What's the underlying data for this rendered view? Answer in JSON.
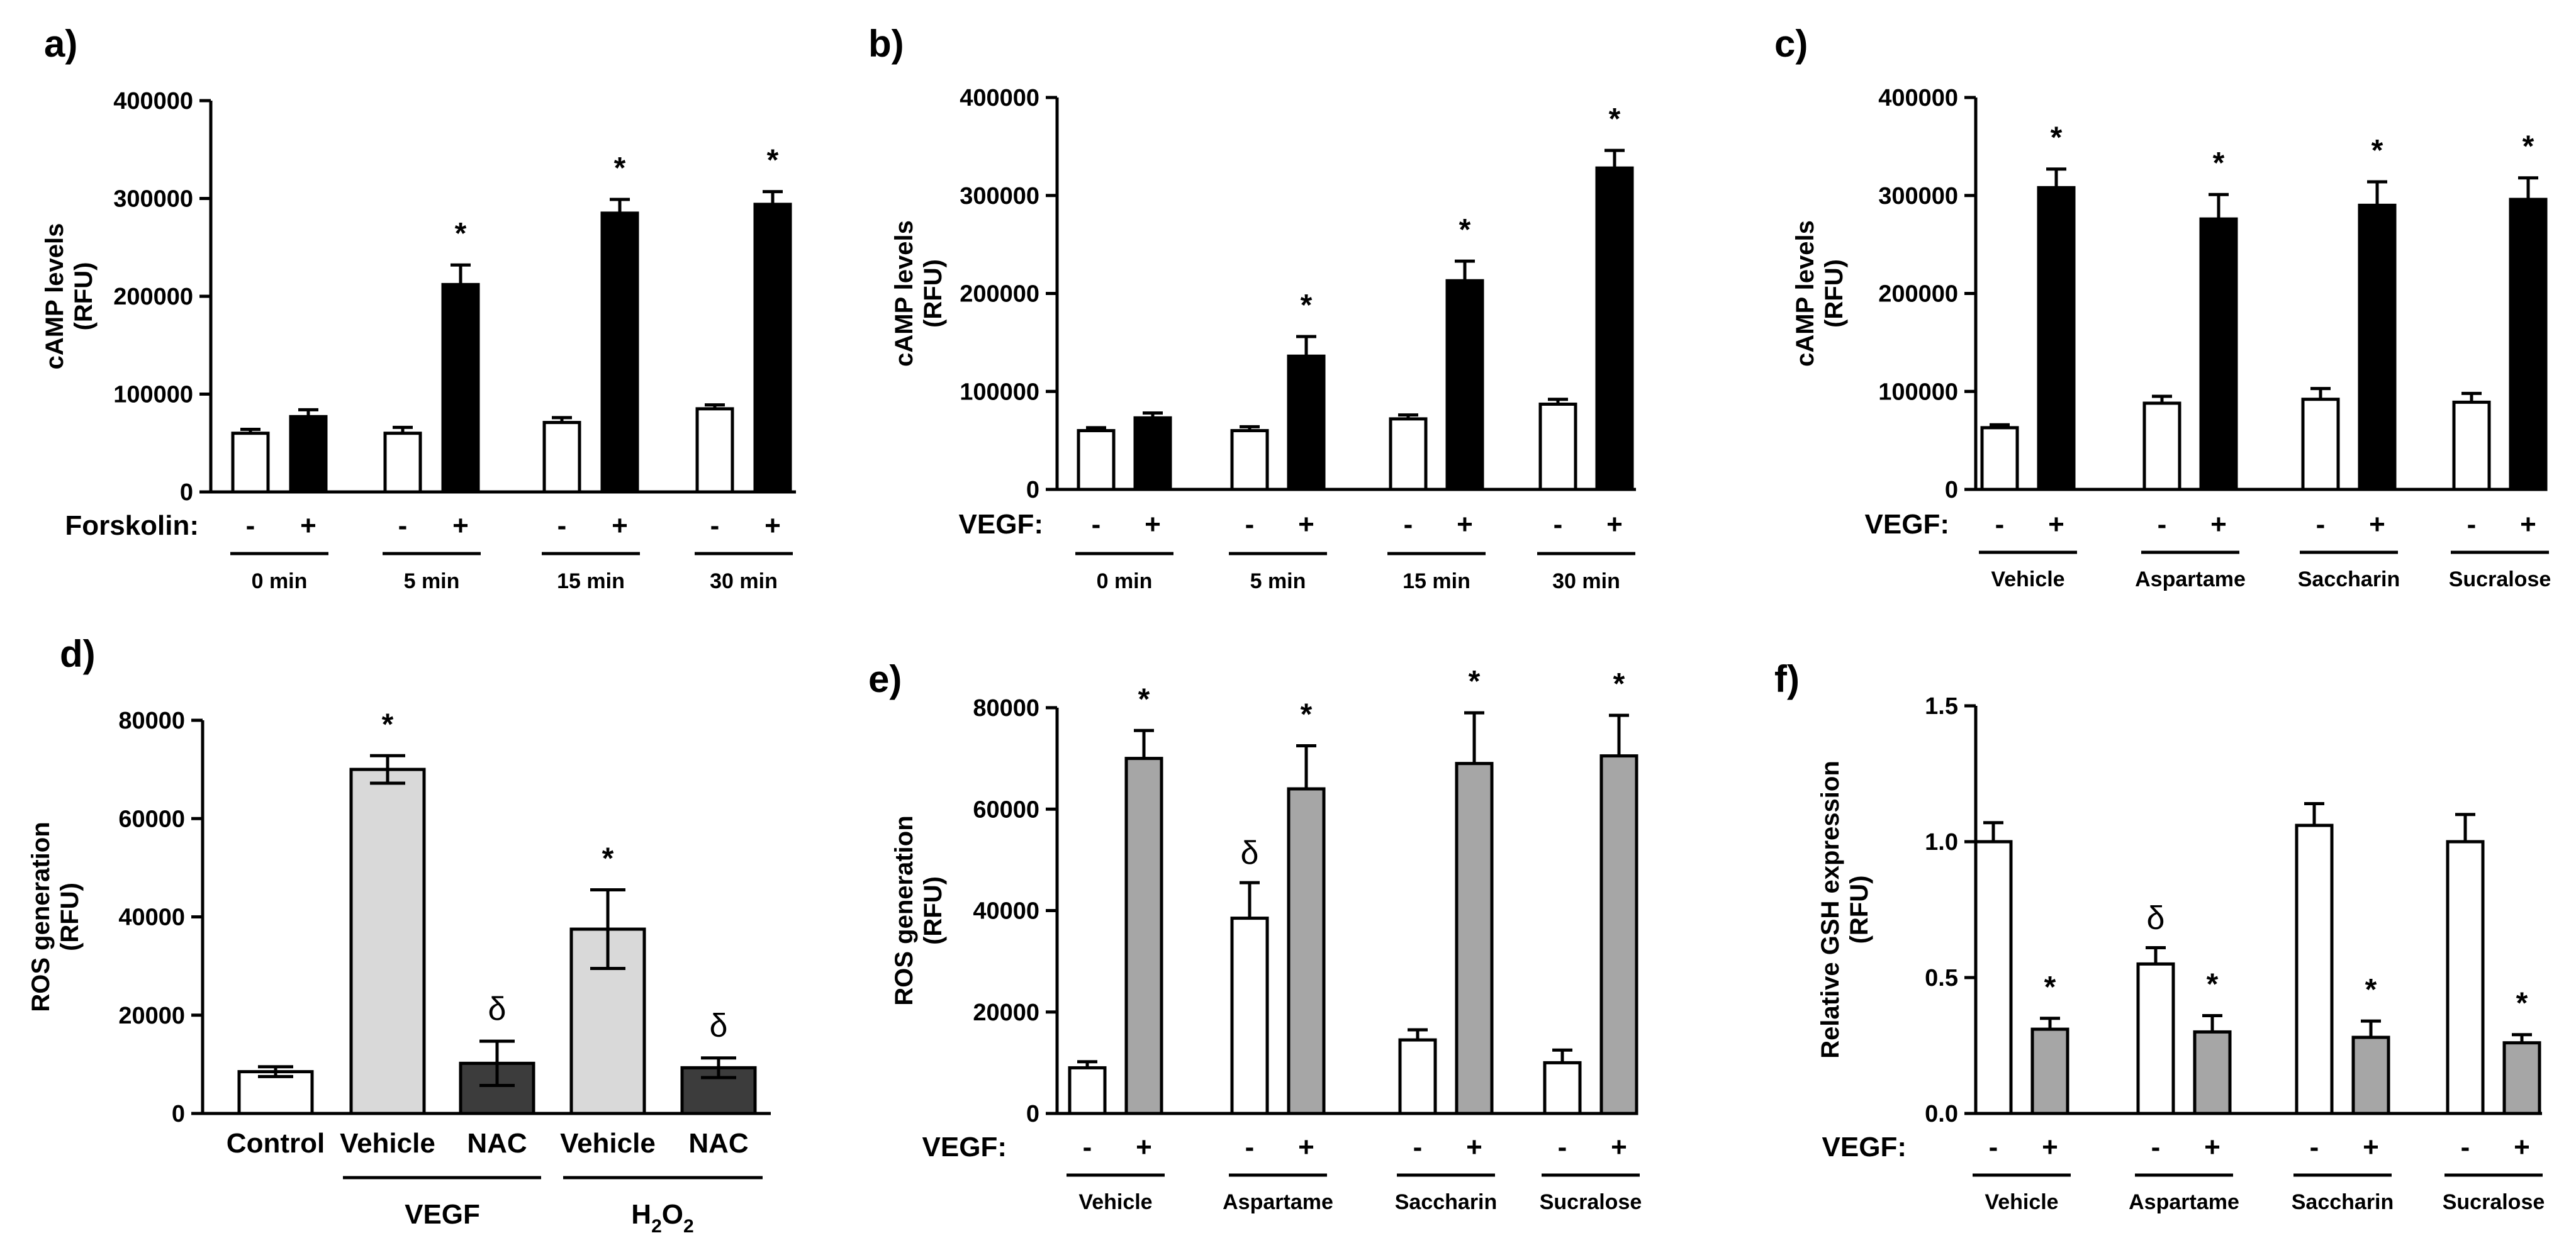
{
  "chart_data": [
    {
      "id": "a",
      "panel_label": "a)",
      "type": "bar",
      "ylabel": [
        "cAMP levels",
        "(RFU)"
      ],
      "ylim": [
        0,
        400000
      ],
      "yticks": [
        "0",
        "100000",
        "200000",
        "300000",
        "400000"
      ],
      "yticks_values": [
        0,
        100000,
        200000,
        300000,
        400000
      ],
      "treatment_label": "Forskolin:",
      "groups": [
        "0 min",
        "5 min",
        "15 min",
        "30 min"
      ],
      "signs": [
        "-",
        "+"
      ],
      "series": [
        {
          "name": "-",
          "fill": "#ffffff",
          "values": [
            60000,
            60000,
            71000,
            85000
          ],
          "errors": [
            4000,
            6000,
            5000,
            4000
          ],
          "marks": [
            "",
            "",
            "",
            ""
          ]
        },
        {
          "name": "+",
          "fill": "#000000",
          "values": [
            77000,
            212000,
            285000,
            294000
          ],
          "errors": [
            7000,
            20000,
            14000,
            13000
          ],
          "marks": [
            "",
            "*",
            "*",
            "*"
          ]
        }
      ]
    },
    {
      "id": "b",
      "panel_label": "b)",
      "type": "bar",
      "ylabel": [
        "cAMP levels",
        "(RFU)"
      ],
      "ylim": [
        0,
        400000
      ],
      "yticks": [
        "0",
        "100000",
        "200000",
        "300000",
        "400000"
      ],
      "yticks_values": [
        0,
        100000,
        200000,
        300000,
        400000
      ],
      "treatment_label": "VEGF:",
      "groups": [
        "0 min",
        "5 min",
        "15 min",
        "30 min"
      ],
      "signs": [
        "-",
        "+"
      ],
      "series": [
        {
          "name": "-",
          "fill": "#ffffff",
          "values": [
            60000,
            60000,
            72000,
            87000
          ],
          "errors": [
            3000,
            4000,
            4000,
            5000
          ],
          "marks": [
            "",
            "",
            "",
            ""
          ]
        },
        {
          "name": "+",
          "fill": "#000000",
          "values": [
            73000,
            136000,
            213000,
            328000
          ],
          "errors": [
            5000,
            20000,
            20000,
            18000
          ],
          "marks": [
            "",
            "*",
            "*",
            "*"
          ]
        }
      ]
    },
    {
      "id": "c",
      "panel_label": "c)",
      "type": "bar",
      "ylabel": [
        "cAMP levels",
        "(RFU)"
      ],
      "ylim": [
        0,
        400000
      ],
      "yticks": [
        "0",
        "100000",
        "200000",
        "300000",
        "400000"
      ],
      "yticks_values": [
        0,
        100000,
        200000,
        300000,
        400000
      ],
      "treatment_label": "VEGF:",
      "groups": [
        "Vehicle",
        "Aspartame",
        "Saccharin",
        "Sucralose"
      ],
      "signs": [
        "-",
        "+"
      ],
      "series": [
        {
          "name": "-",
          "fill": "#ffffff",
          "values": [
            63000,
            88000,
            92000,
            89000
          ],
          "errors": [
            3000,
            7000,
            11000,
            9000
          ],
          "marks": [
            "",
            "",
            "",
            ""
          ]
        },
        {
          "name": "+",
          "fill": "#000000",
          "values": [
            308000,
            276000,
            290000,
            296000
          ],
          "errors": [
            19000,
            25000,
            24000,
            22000
          ],
          "marks": [
            "*",
            "*",
            "*",
            "*"
          ]
        }
      ]
    },
    {
      "id": "d",
      "panel_label": "d)",
      "type": "bar",
      "ylabel": [
        "ROS generation",
        "(RFU)"
      ],
      "ylim": [
        0,
        80000
      ],
      "yticks": [
        "0",
        "20000",
        "40000",
        "60000",
        "80000"
      ],
      "yticks_values": [
        0,
        20000,
        40000,
        60000,
        80000
      ],
      "categories": [
        "Control",
        "Vehicle",
        "NAC",
        "Vehicle",
        "NAC"
      ],
      "values": [
        8500,
        70000,
        10200,
        37500,
        9300
      ],
      "errors": [
        1000,
        2800,
        4500,
        8000,
        2000
      ],
      "fills": [
        "#ffffff",
        "#d9d9d9",
        "#3c3c3c",
        "#d9d9d9",
        "#3c3c3c"
      ],
      "marks": [
        "",
        "*",
        "δ",
        "*",
        "δ"
      ],
      "group_labels": [
        {
          "text": "VEGF",
          "sub": "",
          "span": [
            1,
            2
          ]
        },
        {
          "text": "H",
          "sub": "2",
          "text2": "O",
          "sub2": "2",
          "span": [
            3,
            4
          ]
        }
      ]
    },
    {
      "id": "e",
      "panel_label": "e)",
      "type": "bar",
      "ylabel": [
        "ROS generation",
        "(RFU)"
      ],
      "ylim": [
        0,
        80000
      ],
      "yticks": [
        "0",
        "20000",
        "40000",
        "60000",
        "80000"
      ],
      "yticks_values": [
        0,
        20000,
        40000,
        60000,
        80000
      ],
      "treatment_label": "VEGF:",
      "groups": [
        "Vehicle",
        "Aspartame",
        "Saccharin",
        "Sucralose"
      ],
      "signs": [
        "-",
        "+"
      ],
      "series": [
        {
          "name": "-",
          "fill": "#ffffff",
          "values": [
            9000,
            38500,
            14500,
            10000
          ],
          "errors": [
            1200,
            7000,
            2000,
            2500
          ],
          "marks": [
            "",
            "δ",
            "",
            ""
          ]
        },
        {
          "name": "+",
          "fill": "#a6a6a6",
          "values": [
            70000,
            64000,
            69000,
            70500
          ],
          "errors": [
            5500,
            8500,
            10000,
            8000
          ],
          "marks": [
            "*",
            "*",
            "*",
            "*"
          ]
        }
      ]
    },
    {
      "id": "f",
      "panel_label": "f)",
      "type": "bar",
      "ylabel": [
        "Relative GSH expression",
        "(RFU)"
      ],
      "ylim": [
        0,
        1.5
      ],
      "yticks": [
        "0.0",
        "0.5",
        "1.0",
        "1.5"
      ],
      "yticks_values": [
        0,
        0.5,
        1.0,
        1.5
      ],
      "treatment_label": "VEGF:",
      "groups": [
        "Vehicle",
        "Aspartame",
        "Saccharin",
        "Sucralose"
      ],
      "signs": [
        "-",
        "+"
      ],
      "series": [
        {
          "name": "-",
          "fill": "#ffffff",
          "values": [
            1.0,
            0.55,
            1.06,
            1.0
          ],
          "errors": [
            0.07,
            0.06,
            0.08,
            0.1
          ],
          "marks": [
            "",
            "δ",
            "",
            ""
          ]
        },
        {
          "name": "+",
          "fill": "#a6a6a6",
          "values": [
            0.31,
            0.3,
            0.28,
            0.26
          ],
          "errors": [
            0.04,
            0.06,
            0.06,
            0.03
          ],
          "marks": [
            "*",
            "*",
            "*",
            "*"
          ]
        }
      ]
    }
  ]
}
